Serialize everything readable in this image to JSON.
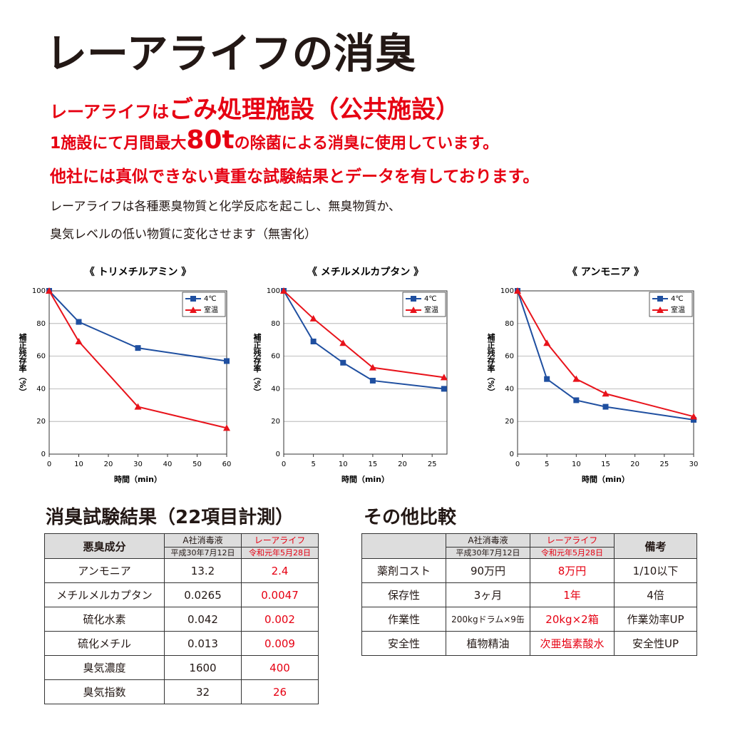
{
  "header": {
    "title": "レーアライフの消臭",
    "line1": {
      "prefix": "レーアライフは",
      "emphasis": "ごみ処理施設（公共施設）"
    },
    "line2": {
      "prefix": "1施設にて月間最大",
      "emphasis": "80t",
      "suffix": "の除菌による消臭に使用しています。"
    },
    "line3": "他社には真似できない貴重な試験結果とデータを有しております。",
    "body": [
      "レーアライフは各種悪臭物質と化学反応を起こし、無臭物質か、",
      "臭気レベルの低い物質に変化させます（無害化）"
    ]
  },
  "chart_data": [
    {
      "type": "line",
      "title": "《 トリメチルアミン 》",
      "x_label": "時間（min）",
      "y_label": "補正残存率（%）",
      "xlim": [
        0,
        60
      ],
      "xticks": [
        0,
        10,
        20,
        30,
        40,
        50,
        60
      ],
      "ylim": [
        0,
        100
      ],
      "yticks": [
        0,
        20,
        40,
        60,
        80,
        100
      ],
      "grid": true,
      "legend": "top-right",
      "series": [
        {
          "name": "4℃",
          "color": "#1f4fa0",
          "marker": "square",
          "x": [
            0,
            10,
            30,
            60
          ],
          "values": [
            100,
            81,
            65,
            57
          ]
        },
        {
          "name": "室温",
          "color": "#e8131b",
          "marker": "triangle",
          "x": [
            0,
            10,
            30,
            60
          ],
          "values": [
            100,
            69,
            29,
            16
          ]
        }
      ]
    },
    {
      "type": "line",
      "title": "《 メチルメルカプタン 》",
      "x_label": "時間（min）",
      "y_label": "補正残存率（%）",
      "xlim": [
        0,
        27.5
      ],
      "xticks": [
        0,
        5,
        10,
        15,
        20,
        25
      ],
      "ylim": [
        0,
        100
      ],
      "yticks": [
        0,
        20,
        40,
        60,
        80,
        100
      ],
      "grid": true,
      "legend": "top-right",
      "series": [
        {
          "name": "4℃",
          "color": "#1f4fa0",
          "marker": "square",
          "x": [
            0,
            5,
            10,
            15,
            27
          ],
          "values": [
            100,
            69,
            56,
            45,
            40
          ]
        },
        {
          "name": "室温",
          "color": "#e8131b",
          "marker": "triangle",
          "x": [
            0,
            5,
            10,
            15,
            27
          ],
          "values": [
            100,
            83,
            68,
            53,
            47
          ]
        }
      ]
    },
    {
      "type": "line",
      "title": "《 アンモニア 》",
      "x_label": "時間（min）",
      "y_label": "補正残存率（%）",
      "xlim": [
        0,
        30
      ],
      "xticks": [
        0,
        5,
        10,
        15,
        20,
        25,
        30
      ],
      "ylim": [
        0,
        100
      ],
      "yticks": [
        0,
        20,
        40,
        60,
        80,
        100
      ],
      "grid": true,
      "legend": "top-right",
      "series": [
        {
          "name": "4℃",
          "color": "#1f4fa0",
          "marker": "square",
          "x": [
            0,
            5,
            10,
            15,
            30
          ],
          "values": [
            100,
            46,
            33,
            29,
            21
          ]
        },
        {
          "name": "室温",
          "color": "#e8131b",
          "marker": "triangle",
          "x": [
            0,
            5,
            10,
            15,
            30
          ],
          "values": [
            100,
            68,
            46,
            37,
            23
          ]
        }
      ]
    }
  ],
  "tables": [
    {
      "title": "消臭試験結果（22項目計測）",
      "highlight": {
        "column": 2,
        "color": "#e60012"
      },
      "header": [
        {
          "label": "悪臭成分"
        },
        {
          "label": "A社消毒液",
          "date": "平成30年7月12日"
        },
        {
          "label": "レーアライフ",
          "date": "令和元年5月28日"
        }
      ],
      "rows": [
        [
          "アンモニア",
          "13.2",
          "2.4"
        ],
        [
          "メチルメルカプタン",
          "0.0265",
          "0.0047"
        ],
        [
          "硫化水素",
          "0.042",
          "0.002"
        ],
        [
          "硫化メチル",
          "0.013",
          "0.009"
        ],
        [
          "臭気濃度",
          "1600",
          "400"
        ],
        [
          "臭気指数",
          "32",
          "26"
        ]
      ]
    },
    {
      "title": "その他比較",
      "highlight": {
        "column": 2,
        "color": "#e60012"
      },
      "header": [
        {
          "label": "A社消毒液",
          "date": "平成30年7月12日"
        },
        {
          "label": "レーアライフ",
          "date": "令和元年5月28日"
        },
        {
          "label": "備考"
        }
      ],
      "rows": [
        [
          "薬剤コスト",
          "90万円",
          "8万円",
          "1/10以下"
        ],
        [
          "保存性",
          "3ヶ月",
          "1年",
          "4倍"
        ],
        [
          "作業性",
          "200kgドラム×9缶",
          "20kg×2箱",
          "作業効率UP"
        ],
        [
          "安全性",
          "植物精油",
          "次亜塩素酸水",
          "安全性UP"
        ]
      ]
    }
  ]
}
